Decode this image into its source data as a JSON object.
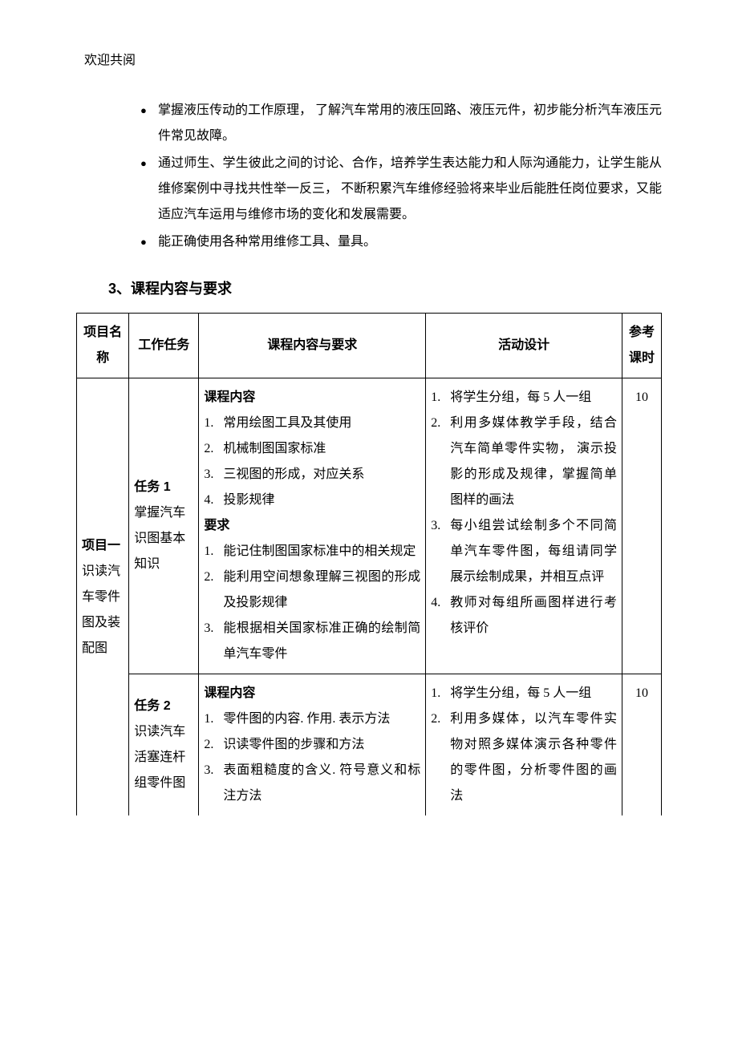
{
  "header_text": "欢迎共阅",
  "bullets": [
    "掌握液压传动的工作原理， 了解汽车常用的液压回路、液压元件，初步能分析汽车液压元件常见故障。",
    "通过师生、学生彼此之间的讨论、合作，培养学生表达能力和人际沟通能力，让学生能从维修案例中寻找共性举一反三， 不断积累汽车维修经验将来毕业后能胜任岗位要求，又能适应汽车运用与维修市场的变化和发展需要。",
    "能正确使用各种常用维修工具、量具。"
  ],
  "section_heading": "3、课程内容与要求",
  "table": {
    "columns": [
      "项目名称",
      "工作任务",
      "课程内容与要求",
      "活动设计",
      "参考课时"
    ],
    "project": {
      "name": "项目一",
      "desc": "识读汽车零件图及装配图"
    },
    "rows": [
      {
        "task_title": "任务 1",
        "task_desc": "掌握汽车识图基本知识",
        "content_title": "课程内容",
        "content_items": [
          "常用绘图工具及其使用",
          "机械制图国家标准",
          "三视图的形成，对应关系",
          "投影规律"
        ],
        "req_title": "要求",
        "req_items": [
          "能记住制图国家标准中的相关规定",
          "能利用空间想象理解三视图的形成及投影规律",
          "能根据相关国家标准正确的绘制简单汽车零件"
        ],
        "activities": [
          "将学生分组，每 5 人一组",
          "利用多媒体教学手段，结合汽车简单零件实物， 演示投影的形成及规律，掌握简单图样的画法",
          "每小组尝试绘制多个不同简单汽车零件图，每组请同学展示绘制成果，并相互点评",
          "教师对每组所画图样进行考核评价"
        ],
        "hours": "10"
      },
      {
        "task_title": "任务 2",
        "task_desc": "识读汽车活塞连杆组零件图",
        "content_title": "课程内容",
        "content_items": [
          "零件图的内容. 作用. 表示方法",
          "识读零件图的步骤和方法",
          "表面粗糙度的含义. 符号意义和标注方法"
        ],
        "req_title": "",
        "req_items": [],
        "activities": [
          "将学生分组，每 5 人一组",
          "利用多媒体，以汽车零件实物对照多媒体演示各种零件的零件图，分析零件图的画法"
        ],
        "hours": "10"
      }
    ]
  },
  "colors": {
    "text": "#000000",
    "background": "#ffffff",
    "border": "#000000"
  },
  "typography": {
    "body_font": "SimSun",
    "heading_font": "SimHei",
    "body_size_pt": 12,
    "heading_size_pt": 14,
    "line_height": 2.0
  }
}
